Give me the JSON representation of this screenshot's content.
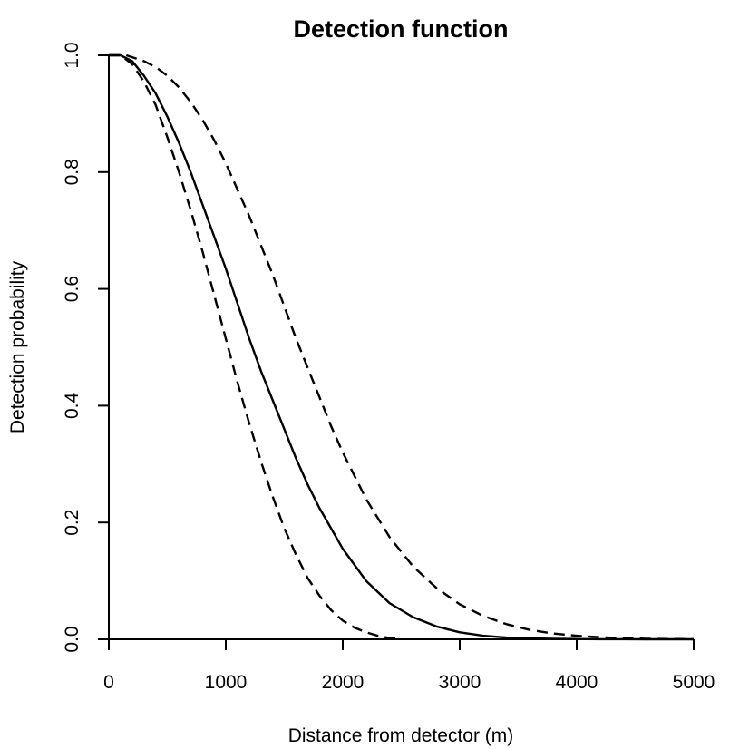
{
  "chart_data": {
    "type": "line",
    "title": "Detection function",
    "xlabel": "Distance from detector (m)",
    "ylabel": "Detection probability",
    "xlim": [
      0,
      5000
    ],
    "ylim": [
      0,
      1
    ],
    "xticks": [
      0,
      1000,
      2000,
      3000,
      4000,
      5000
    ],
    "xtick_labels": [
      "0",
      "1000",
      "2000",
      "3000",
      "4000",
      "5000"
    ],
    "yticks": [
      0,
      0.2,
      0.4,
      0.6,
      0.8,
      1.0
    ],
    "ytick_labels": [
      "0.0",
      "0.2",
      "0.4",
      "0.6",
      "0.8",
      "1.0"
    ],
    "grid": false,
    "series": [
      {
        "style": "solid",
        "x": [
          0,
          100,
          200,
          300,
          400,
          500,
          600,
          700,
          800,
          900,
          1000,
          1100,
          1200,
          1300,
          1400,
          1500,
          1600,
          1700,
          1800,
          1900,
          2000,
          2200,
          2400,
          2600,
          2800,
          3000,
          3200,
          3400,
          3600,
          3800,
          4000,
          4200,
          4400,
          4600,
          4800,
          5000
        ],
        "y": [
          1.0,
          1.0,
          0.99,
          0.965,
          0.935,
          0.895,
          0.85,
          0.8,
          0.745,
          0.69,
          0.635,
          0.575,
          0.515,
          0.46,
          0.41,
          0.36,
          0.31,
          0.265,
          0.225,
          0.19,
          0.155,
          0.1,
          0.062,
          0.038,
          0.022,
          0.012,
          0.006,
          0.003,
          0.0015,
          0.0008,
          0.0004,
          0.0002,
          0.0001,
          0.0,
          0.0,
          0.0
        ]
      },
      {
        "style": "dashed",
        "x": [
          0,
          100,
          200,
          300,
          400,
          500,
          600,
          700,
          800,
          900,
          1000,
          1100,
          1200,
          1300,
          1400,
          1500,
          1600,
          1700,
          1800,
          1900,
          2000,
          2100,
          2200,
          2300,
          2400,
          2500
        ],
        "y": [
          1.0,
          1.0,
          0.985,
          0.955,
          0.915,
          0.86,
          0.8,
          0.735,
          0.665,
          0.59,
          0.515,
          0.44,
          0.37,
          0.305,
          0.245,
          0.19,
          0.145,
          0.105,
          0.075,
          0.05,
          0.032,
          0.02,
          0.012,
          0.006,
          0.002,
          0.0
        ]
      },
      {
        "style": "dashed",
        "x": [
          150,
          300,
          400,
          500,
          600,
          700,
          800,
          900,
          1000,
          1100,
          1200,
          1300,
          1400,
          1500,
          1600,
          1700,
          1800,
          1900,
          2000,
          2200,
          2400,
          2600,
          2800,
          3000,
          3200,
          3400,
          3600,
          3800,
          4000,
          4200,
          4400,
          4600,
          4800,
          5000
        ],
        "y": [
          1.0,
          0.99,
          0.98,
          0.965,
          0.945,
          0.92,
          0.89,
          0.855,
          0.815,
          0.77,
          0.725,
          0.675,
          0.625,
          0.57,
          0.515,
          0.465,
          0.415,
          0.365,
          0.32,
          0.24,
          0.175,
          0.125,
          0.088,
          0.06,
          0.04,
          0.026,
          0.016,
          0.01,
          0.006,
          0.0035,
          0.002,
          0.001,
          0.0005,
          0.0002
        ]
      }
    ]
  }
}
